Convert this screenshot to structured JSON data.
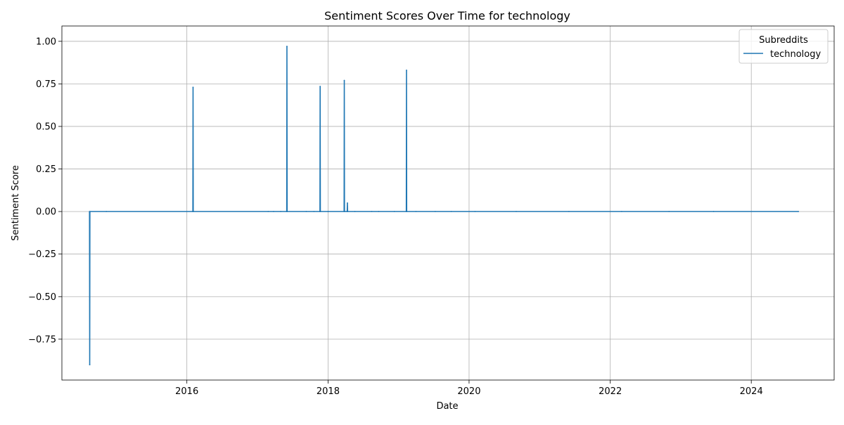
{
  "chart_data": {
    "type": "line",
    "title": "Sentiment Scores Over Time for technology",
    "xlabel": "Date",
    "ylabel": "Sentiment Score",
    "x_tick_labels": [
      "2016",
      "2018",
      "2020",
      "2022",
      "2024"
    ],
    "y_tick_labels": [
      "−0.75",
      "−0.50",
      "−0.25",
      "0.00",
      "0.25",
      "0.50",
      "0.75",
      "1.00"
    ],
    "y_ticks": [
      -0.75,
      -0.5,
      -0.25,
      0.0,
      0.25,
      0.5,
      0.75,
      1.0
    ],
    "xlim": [
      "2014-03-25",
      "2025-03-05"
    ],
    "ylim": [
      -0.99,
      1.09
    ],
    "grid": true,
    "legend": {
      "title": "Subreddits",
      "position": "top-right"
    },
    "series": [
      {
        "name": "technology",
        "color": "#1f77b4",
        "points": [
          {
            "x": "2014-08-15",
            "y": 0.0
          },
          {
            "x": "2014-08-16",
            "y": -0.9
          },
          {
            "x": "2014-08-17",
            "y": 0.0
          },
          {
            "x": "2014-11-10",
            "y": 0.0
          },
          {
            "x": "2016-02-01",
            "y": 0.0
          },
          {
            "x": "2016-02-02",
            "y": 0.73
          },
          {
            "x": "2016-02-03",
            "y": 0.0
          },
          {
            "x": "2017-02-25",
            "y": 0.0
          },
          {
            "x": "2017-03-25",
            "y": 0.0
          },
          {
            "x": "2017-05-01",
            "y": 0.0
          },
          {
            "x": "2017-06-01",
            "y": 0.0
          },
          {
            "x": "2017-06-02",
            "y": 0.97
          },
          {
            "x": "2017-06-03",
            "y": 0.0
          },
          {
            "x": "2017-09-10",
            "y": 0.0
          },
          {
            "x": "2017-10-20",
            "y": 0.0
          },
          {
            "x": "2017-11-20",
            "y": 0.0
          },
          {
            "x": "2017-11-21",
            "y": 0.735
          },
          {
            "x": "2017-11-22",
            "y": 0.0
          },
          {
            "x": "2018-01-01",
            "y": 0.0
          },
          {
            "x": "2018-03-25",
            "y": 0.0
          },
          {
            "x": "2018-03-26",
            "y": 0.77
          },
          {
            "x": "2018-03-27",
            "y": 0.0
          },
          {
            "x": "2018-04-10",
            "y": 0.0
          },
          {
            "x": "2018-04-11",
            "y": 0.05
          },
          {
            "x": "2018-04-12",
            "y": 0.0
          },
          {
            "x": "2018-05-20",
            "y": 0.0
          },
          {
            "x": "2018-08-15",
            "y": 0.0
          },
          {
            "x": "2018-09-20",
            "y": 0.0
          },
          {
            "x": "2018-12-10",
            "y": 0.0
          },
          {
            "x": "2019-02-10",
            "y": 0.0
          },
          {
            "x": "2019-02-11",
            "y": 0.83
          },
          {
            "x": "2019-02-12",
            "y": 0.0
          },
          {
            "x": "2019-04-01",
            "y": 0.0
          },
          {
            "x": "2019-07-10",
            "y": 0.0
          },
          {
            "x": "2019-10-01",
            "y": 0.0
          },
          {
            "x": "2020-02-01",
            "y": 0.0
          },
          {
            "x": "2020-09-01",
            "y": 0.0
          },
          {
            "x": "2021-06-01",
            "y": 0.0
          },
          {
            "x": "2022-03-01",
            "y": 0.0
          },
          {
            "x": "2022-11-01",
            "y": 0.0
          },
          {
            "x": "2023-06-20",
            "y": 0.0
          },
          {
            "x": "2024-09-01",
            "y": 0.0
          }
        ]
      }
    ]
  }
}
